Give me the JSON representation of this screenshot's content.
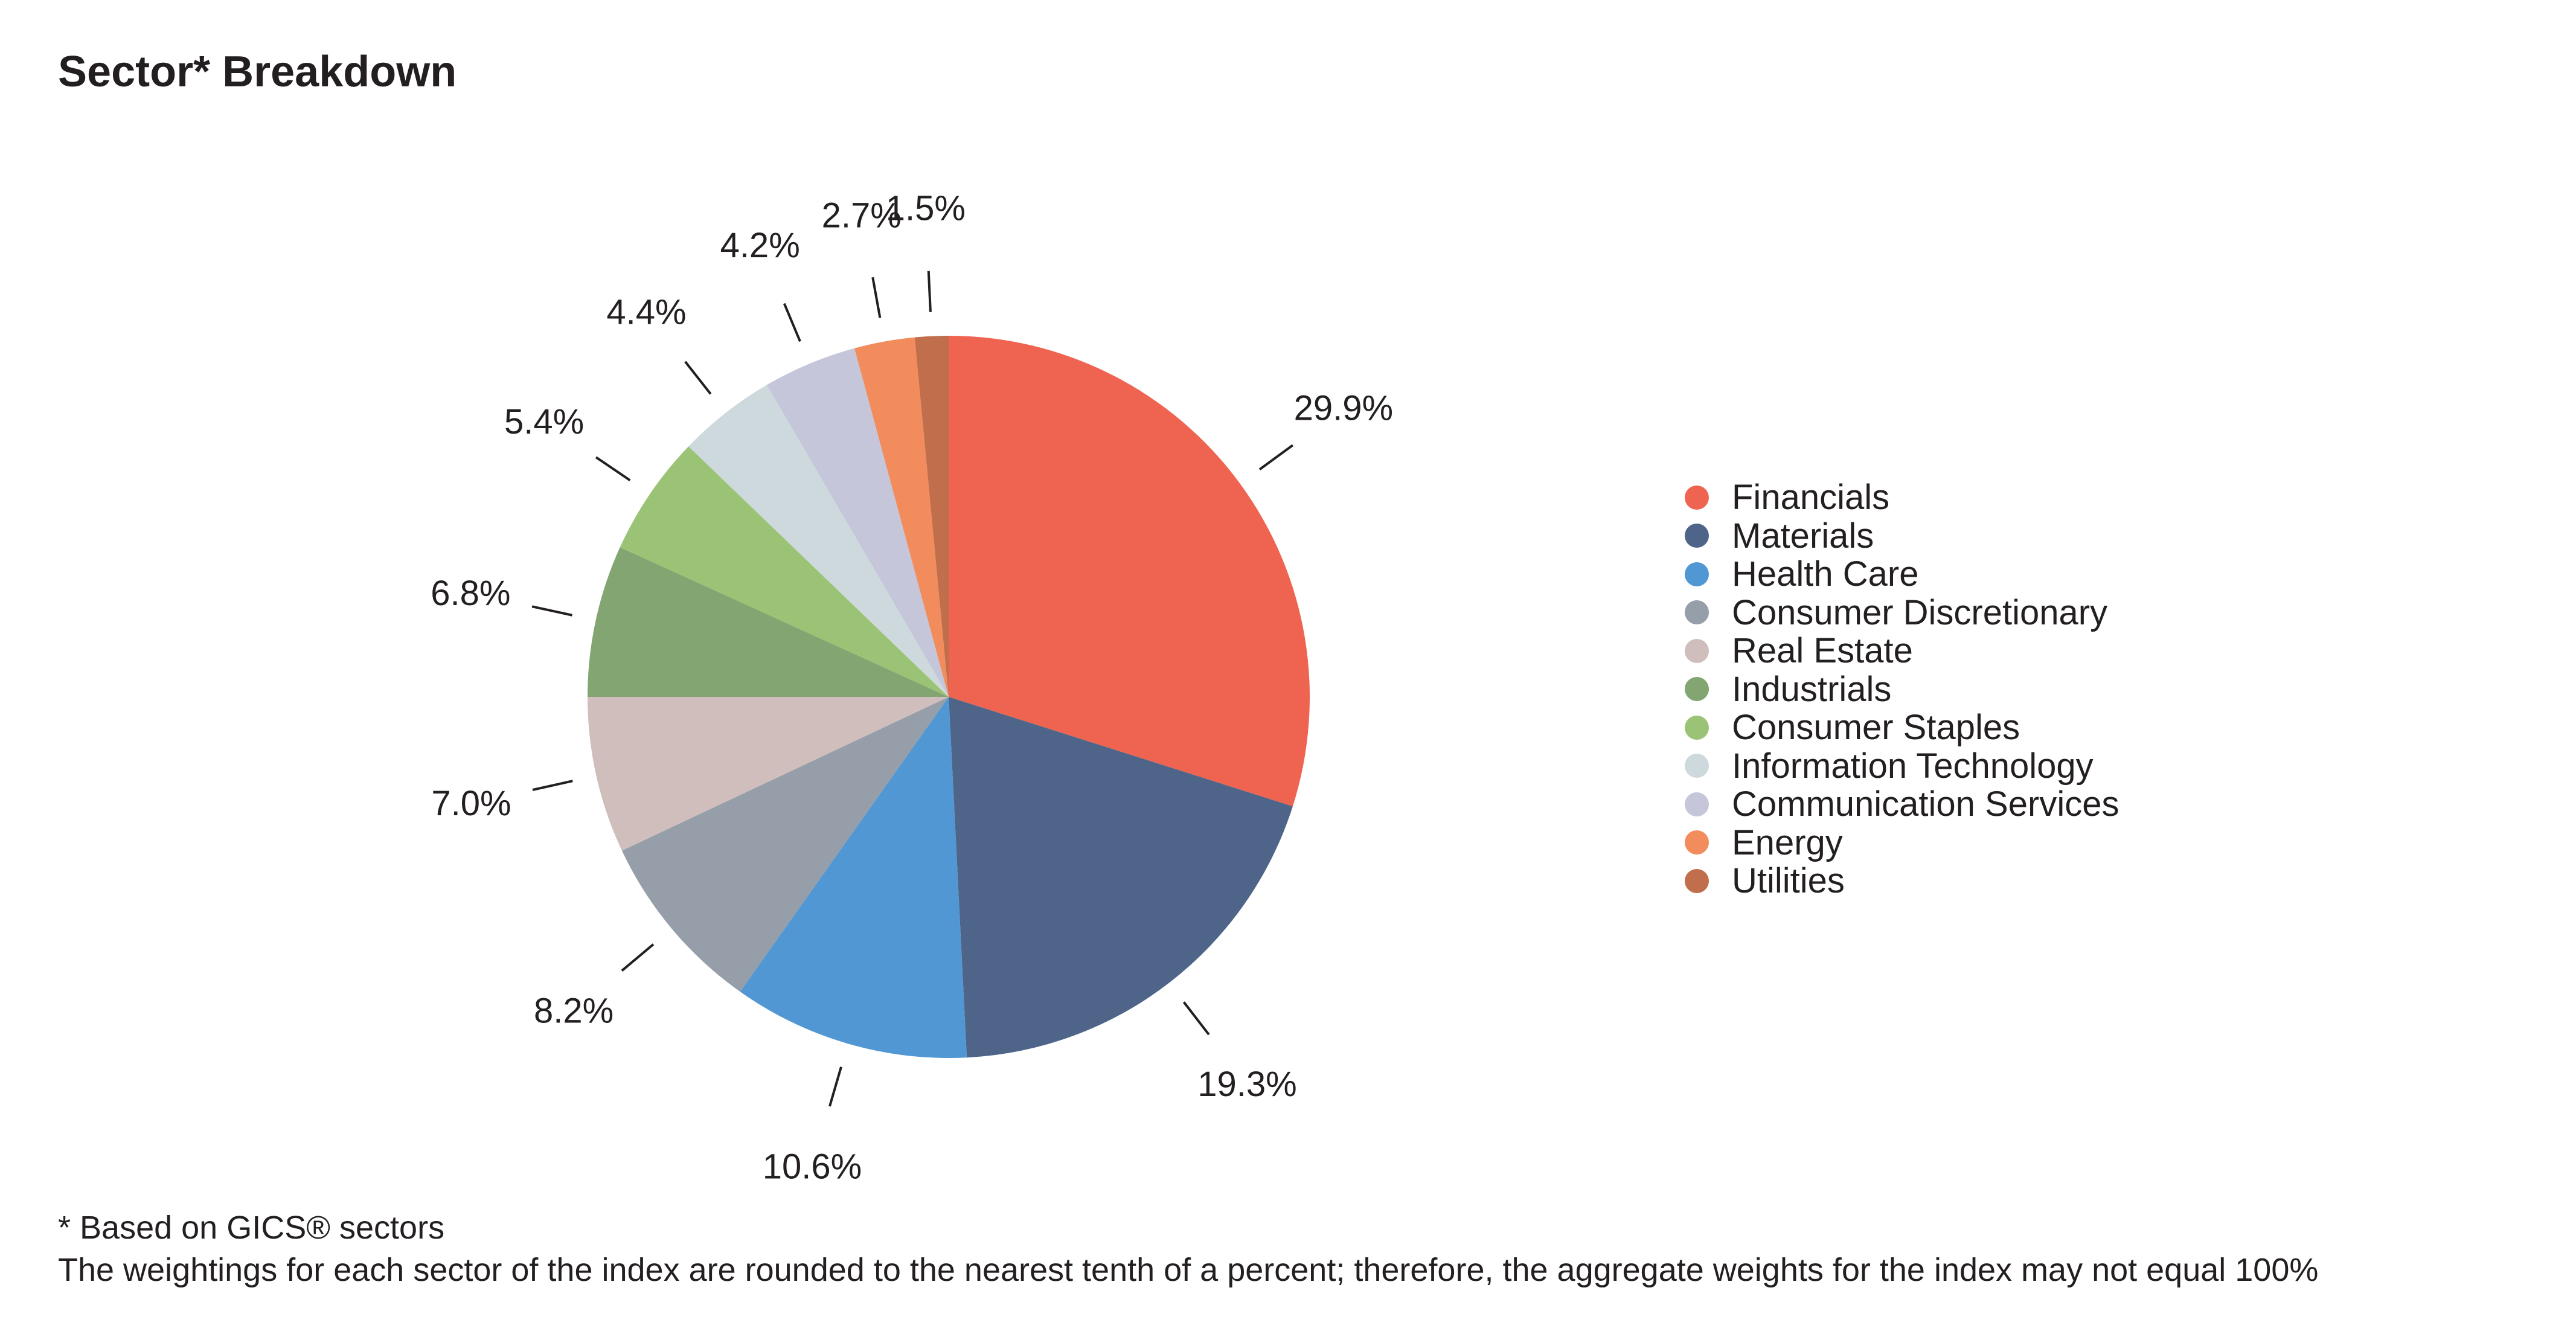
{
  "title": "Sector* Breakdown",
  "chart_data": {
    "type": "pie",
    "title": "Sector* Breakdown",
    "legend_position": "right",
    "start_angle_deg": 0,
    "direction": "clockwise",
    "slices": [
      {
        "label": "Financials",
        "value": 29.9,
        "display": "29.9%",
        "color": "#ef6450"
      },
      {
        "label": "Materials",
        "value": 19.3,
        "display": "19.3%",
        "color": "#4e6589"
      },
      {
        "label": "Health Care",
        "value": 10.6,
        "display": "10.6%",
        "color": "#5197d3"
      },
      {
        "label": "Consumer Discretionary",
        "value": 8.2,
        "display": "8.2%",
        "color": "#969ea9"
      },
      {
        "label": "Real Estate",
        "value": 7.0,
        "display": "7.0%",
        "color": "#d0bebc"
      },
      {
        "label": "Industrials",
        "value": 6.8,
        "display": "6.8%",
        "color": "#82a571"
      },
      {
        "label": "Consumer Staples",
        "value": 5.4,
        "display": "5.4%",
        "color": "#9bc375"
      },
      {
        "label": "Information Technology",
        "value": 4.4,
        "display": "4.4%",
        "color": "#cdd9dc"
      },
      {
        "label": "Communication Services",
        "value": 4.2,
        "display": "4.2%",
        "color": "#c5c6d9"
      },
      {
        "label": "Energy",
        "value": 2.7,
        "display": "2.7%",
        "color": "#f28c5c"
      },
      {
        "label": "Utilities",
        "value": 1.5,
        "display": "1.5%",
        "color": "#c06e4c"
      }
    ]
  },
  "footnote": {
    "line1": "* Based on GICS® sectors",
    "line2": "The weightings for each sector of the index are rounded to the nearest tenth of a percent; therefore, the aggregate weights for the index may not equal 100%"
  }
}
